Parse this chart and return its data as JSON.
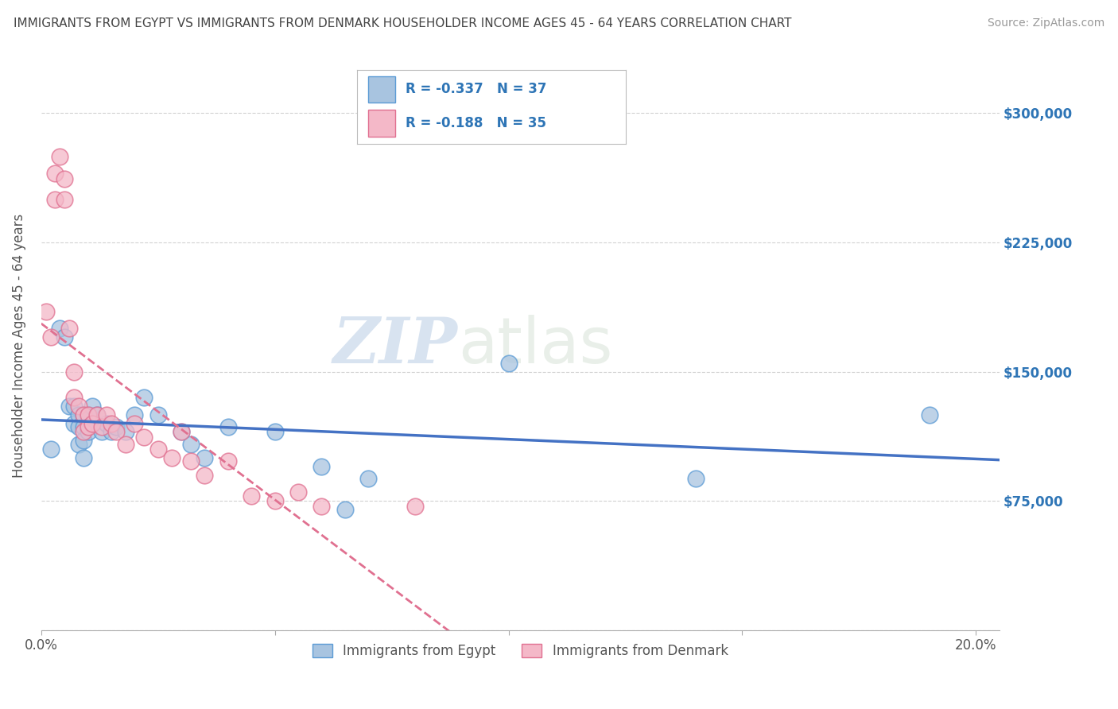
{
  "title": "IMMIGRANTS FROM EGYPT VS IMMIGRANTS FROM DENMARK HOUSEHOLDER INCOME AGES 45 - 64 YEARS CORRELATION CHART",
  "source": "Source: ZipAtlas.com",
  "ylabel": "Householder Income Ages 45 - 64 years",
  "xlim": [
    0.0,
    0.205
  ],
  "ylim": [
    0,
    330000
  ],
  "yticks": [
    0,
    75000,
    150000,
    225000,
    300000
  ],
  "xticks": [
    0.0,
    0.05,
    0.1,
    0.15,
    0.2
  ],
  "xtick_labels_show": [
    "0.0%",
    "",
    "",
    "",
    "20.0%"
  ],
  "egypt_color": "#a8c4e0",
  "egypt_edge": "#5b9bd5",
  "egypt_line_color": "#4472c4",
  "denmark_color": "#f4b8c8",
  "denmark_edge": "#e07090",
  "denmark_line_color": "#e07090",
  "egypt_R": -0.337,
  "egypt_N": 37,
  "denmark_R": -0.188,
  "denmark_N": 35,
  "legend_label_egypt": "Immigrants from Egypt",
  "legend_label_denmark": "Immigrants from Denmark",
  "watermark_zip": "ZIP",
  "watermark_atlas": "atlas",
  "bg_color": "#ffffff",
  "grid_color": "#cccccc",
  "right_ytick_color": "#2e75b6",
  "right_ytick_vals": [
    75000,
    150000,
    225000,
    300000
  ],
  "egypt_x": [
    0.002,
    0.004,
    0.005,
    0.006,
    0.007,
    0.007,
    0.008,
    0.008,
    0.008,
    0.009,
    0.009,
    0.009,
    0.009,
    0.01,
    0.01,
    0.011,
    0.011,
    0.012,
    0.013,
    0.014,
    0.015,
    0.016,
    0.018,
    0.02,
    0.022,
    0.025,
    0.03,
    0.032,
    0.035,
    0.04,
    0.05,
    0.06,
    0.065,
    0.07,
    0.1,
    0.14,
    0.19
  ],
  "egypt_y": [
    105000,
    175000,
    170000,
    130000,
    130000,
    120000,
    125000,
    118000,
    108000,
    125000,
    118000,
    110000,
    100000,
    125000,
    115000,
    130000,
    120000,
    125000,
    115000,
    120000,
    115000,
    118000,
    115000,
    125000,
    135000,
    125000,
    115000,
    108000,
    100000,
    118000,
    115000,
    95000,
    70000,
    88000,
    155000,
    88000,
    125000
  ],
  "denmark_x": [
    0.001,
    0.002,
    0.003,
    0.003,
    0.004,
    0.005,
    0.005,
    0.006,
    0.007,
    0.007,
    0.008,
    0.009,
    0.009,
    0.01,
    0.01,
    0.011,
    0.012,
    0.013,
    0.014,
    0.015,
    0.016,
    0.018,
    0.02,
    0.022,
    0.025,
    0.028,
    0.03,
    0.032,
    0.035,
    0.04,
    0.045,
    0.05,
    0.055,
    0.06,
    0.08
  ],
  "denmark_y": [
    185000,
    170000,
    265000,
    250000,
    275000,
    262000,
    250000,
    175000,
    150000,
    135000,
    130000,
    125000,
    115000,
    125000,
    118000,
    120000,
    125000,
    118000,
    125000,
    120000,
    115000,
    108000,
    120000,
    112000,
    105000,
    100000,
    115000,
    98000,
    90000,
    98000,
    78000,
    75000,
    80000,
    72000,
    72000
  ]
}
